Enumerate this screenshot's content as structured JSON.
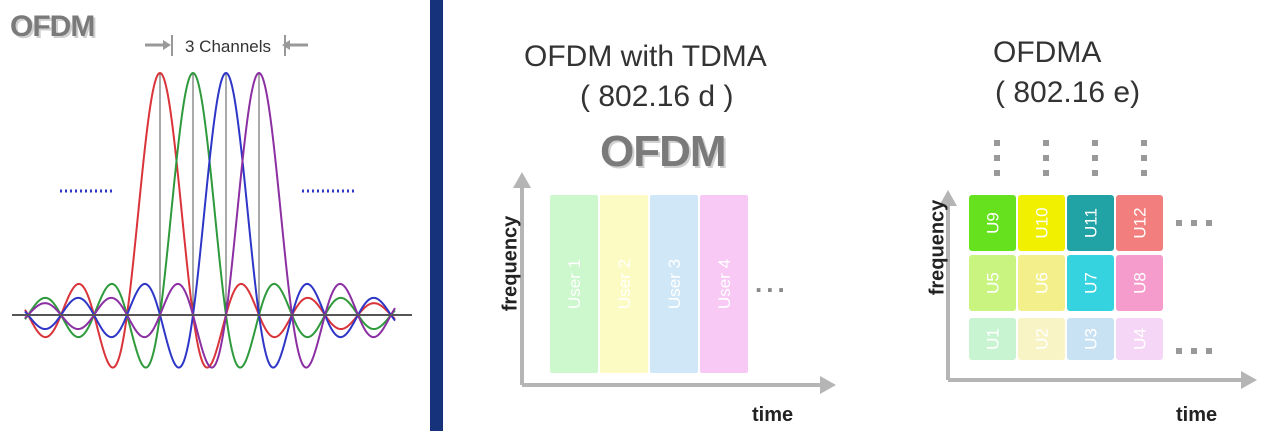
{
  "left_panel": {
    "title": "OFDM",
    "channels_label": "3 Channels"
  },
  "tdma_panel": {
    "title_line1": "OFDM with TDMA",
    "title_line2": "( 802.16 d )",
    "logo": "OFDM",
    "y_axis_label": "frequency",
    "x_axis_label": "time",
    "ellipsis": "...",
    "users": [
      {
        "label": "User 1",
        "color": "#cdf7cd"
      },
      {
        "label": "User 2",
        "color": "#fdfbc4"
      },
      {
        "label": "User 3",
        "color": "#cfe7f7"
      },
      {
        "label": "User 4",
        "color": "#f7c9f4"
      }
    ]
  },
  "ofdma_panel": {
    "title_line1": "OFDMA",
    "title_line2": "( 802.16 e)",
    "y_axis_label": "frequency",
    "x_axis_label": "time",
    "ellipsis": "...",
    "rows": [
      [
        {
          "label": "U9",
          "color": "#66e11e"
        },
        {
          "label": "U10",
          "color": "#f0f000"
        },
        {
          "label": "U11",
          "color": "#21a3a5"
        },
        {
          "label": "U12",
          "color": "#f27e7e"
        }
      ],
      [
        {
          "label": "U5",
          "color": "#c8f47f"
        },
        {
          "label": "U6",
          "color": "#f3f08c"
        },
        {
          "label": "U7",
          "color": "#34d3df"
        },
        {
          "label": "U8",
          "color": "#f69ccd"
        }
      ],
      [
        {
          "label": "U1",
          "color": "#c9f4d1"
        },
        {
          "label": "U2",
          "color": "#f8f4c6"
        },
        {
          "label": "U3",
          "color": "#c9e2f3"
        },
        {
          "label": "U4",
          "color": "#f5d6f6"
        }
      ]
    ]
  },
  "colors": {
    "red": "#d9343a",
    "green": "#2e9a3c",
    "blue": "#2e36c7",
    "purple": "#8b2fa3",
    "divider": "#15327a"
  }
}
